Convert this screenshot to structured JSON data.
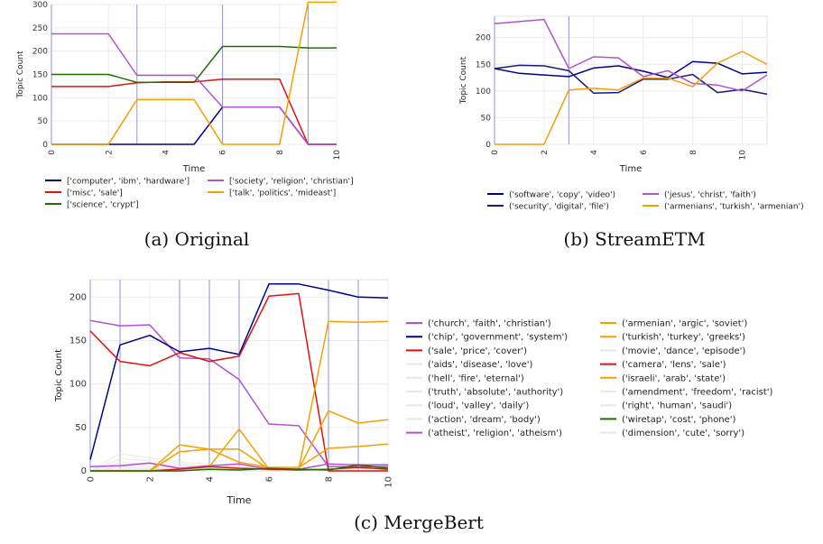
{
  "chart_data": [
    {
      "type": "line",
      "ylabel": "Topic Count",
      "xlabel": "Time",
      "caption": "(a) Original",
      "xlim": [
        0,
        10
      ],
      "ylim": [
        0,
        300
      ],
      "xticks": [
        0,
        2,
        4,
        6,
        8,
        10
      ],
      "yticks": [
        0,
        50,
        100,
        150,
        200,
        250,
        300
      ],
      "vlines": [
        0,
        3,
        6,
        9
      ],
      "grid": true,
      "legend_position": "bottom",
      "x": [
        0,
        1,
        2,
        3,
        4,
        5,
        6,
        7,
        8,
        9,
        10
      ],
      "series": [
        {
          "name": "['computer', 'ibm', 'hardware']",
          "color": "#00008b",
          "values": [
            0,
            0,
            0,
            0,
            0,
            0,
            80,
            80,
            80,
            0,
            0
          ]
        },
        {
          "name": "['misc', 'sale']",
          "color": "#e3120b",
          "values": [
            124,
            124,
            124,
            132,
            134,
            134,
            140,
            140,
            140,
            0,
            0
          ]
        },
        {
          "name": "['science', 'crypt']",
          "color": "#1f6f00",
          "values": [
            150,
            150,
            150,
            133,
            133,
            133,
            210,
            210,
            210,
            207,
            207
          ]
        },
        {
          "name": "['society', 'religion', 'christian']",
          "color": "#b452cd",
          "values": [
            237,
            237,
            237,
            148,
            148,
            148,
            80,
            80,
            80,
            0,
            0
          ]
        },
        {
          "name": "['talk', 'politics', 'mideast']",
          "color": "#f5a000",
          "values": [
            0,
            0,
            0,
            96,
            96,
            96,
            0,
            0,
            0,
            305,
            305
          ]
        }
      ]
    },
    {
      "type": "line",
      "ylabel": "Topic Count",
      "xlabel": "Time",
      "caption": "(b) StreamETM",
      "xlim": [
        0,
        11
      ],
      "ylim": [
        0,
        240
      ],
      "xticks": [
        0,
        2,
        4,
        6,
        8,
        10
      ],
      "yticks": [
        0,
        50,
        100,
        150,
        200
      ],
      "vlines": [
        0,
        3
      ],
      "grid": true,
      "legend_position": "bottom",
      "x": [
        0,
        1,
        2,
        3,
        4,
        5,
        6,
        7,
        8,
        9,
        10,
        11
      ],
      "series": [
        {
          "name": "('software', 'copy', 'video')",
          "color": "#00008b",
          "values": [
            142,
            133,
            130,
            127,
            143,
            147,
            137,
            125,
            155,
            152,
            132,
            135
          ]
        },
        {
          "name": "('security', 'digital', 'file')",
          "color": "#1a1a7a",
          "values": [
            142,
            148,
            147,
            138,
            96,
            97,
            122,
            122,
            131,
            97,
            103,
            94
          ]
        },
        {
          "name": "('jesus', 'christ', 'faith')",
          "color": "#b452cd",
          "values": [
            226,
            230,
            234,
            142,
            164,
            162,
            127,
            138,
            114,
            111,
            100,
            130
          ]
        },
        {
          "name": "('armenians', 'turkish', 'armenian')",
          "color": "#f5a000",
          "values": [
            0,
            0,
            0,
            102,
            105,
            102,
            124,
            124,
            108,
            152,
            174,
            150
          ]
        }
      ]
    },
    {
      "type": "line",
      "ylabel": "Topic Count",
      "xlabel": "Time",
      "caption": "(c) MergeBert",
      "xlim": [
        0,
        10
      ],
      "ylim": [
        0,
        220
      ],
      "xticks": [
        0,
        2,
        4,
        6,
        8,
        10
      ],
      "yticks": [
        0,
        50,
        100,
        150,
        200
      ],
      "vlines": [
        0,
        1,
        3,
        4,
        5,
        8,
        9
      ],
      "grid": true,
      "legend_position": "right",
      "x": [
        0,
        1,
        2,
        3,
        4,
        5,
        6,
        7,
        8,
        9,
        10
      ],
      "series": [
        {
          "name": "('church', 'faith', 'christian')",
          "color": "#b452cd",
          "values": [
            173,
            167,
            168,
            130,
            129,
            105,
            54,
            52,
            5,
            5,
            5
          ]
        },
        {
          "name": "('chip', 'government', 'system')",
          "color": "#00008b",
          "values": [
            13,
            145,
            156,
            137,
            141,
            134,
            215,
            215,
            208,
            200,
            199
          ]
        },
        {
          "name": "('sale', 'price', 'cover')",
          "color": "#e3120b",
          "values": [
            161,
            126,
            121,
            136,
            126,
            132,
            201,
            204,
            0,
            0,
            0
          ]
        },
        {
          "name": "('aids', 'disease', 'love')",
          "color": "#e8e8e8",
          "values": [
            0,
            20,
            15,
            10,
            8,
            5,
            3,
            2,
            2,
            1,
            1
          ]
        },
        {
          "name": "('hell', 'fire', 'eternal')",
          "color": "#e8e8e8",
          "values": [
            0,
            14,
            12,
            8,
            6,
            4,
            3,
            2,
            2,
            1,
            1
          ]
        },
        {
          "name": "('truth', 'absolute', 'authority')",
          "color": "#e8e8e8",
          "values": [
            0,
            10,
            8,
            6,
            5,
            4,
            3,
            2,
            1,
            1,
            1
          ]
        },
        {
          "name": "('loud', 'valley', 'daily')",
          "color": "#e8e8e8",
          "values": [
            0,
            6,
            5,
            4,
            3,
            2,
            2,
            1,
            1,
            1,
            1
          ]
        },
        {
          "name": "('action', 'dream', 'body')",
          "color": "#e8e8e8",
          "values": [
            0,
            4,
            3,
            3,
            2,
            2,
            1,
            1,
            1,
            1,
            1
          ]
        },
        {
          "name": "('atheist', 'religion', 'atheism')",
          "color": "#b452cd",
          "values": [
            5,
            6,
            9,
            3,
            6,
            8,
            2,
            2,
            8,
            7,
            7
          ]
        },
        {
          "name": "('armenian', 'argic', 'soviet')",
          "color": "#f5a000",
          "values": [
            0,
            0,
            0,
            30,
            25,
            25,
            2,
            2,
            172,
            171,
            172
          ]
        },
        {
          "name": "('turkish', 'turkey', 'greeks')",
          "color": "#f5a000",
          "values": [
            0,
            0,
            0,
            2,
            5,
            48,
            2,
            2,
            69,
            55,
            59
          ]
        },
        {
          "name": "('movie', 'dance', 'episode')",
          "color": "#e8e8e8",
          "values": [
            0,
            2,
            2,
            2,
            2,
            1,
            1,
            1,
            1,
            1,
            1
          ]
        },
        {
          "name": "('camera', 'lens', 'sale')",
          "color": "#e3120b",
          "values": [
            0,
            0,
            0,
            2,
            5,
            3,
            2,
            1,
            2,
            4,
            2
          ]
        },
        {
          "name": "('israeli', 'arab', 'state')",
          "color": "#f5a000",
          "values": [
            0,
            0,
            0,
            22,
            25,
            10,
            4,
            4,
            26,
            28,
            31
          ]
        },
        {
          "name": "('amendment', 'freedom', 'racist')",
          "color": "#e8e8e8",
          "values": [
            0,
            2,
            2,
            1,
            1,
            1,
            1,
            1,
            1,
            1,
            1
          ]
        },
        {
          "name": "('right', 'human', 'saudi')",
          "color": "#e8e8e8",
          "values": [
            0,
            1,
            1,
            1,
            1,
            1,
            1,
            1,
            1,
            1,
            1
          ]
        },
        {
          "name": "('wiretap', 'cost', 'phone')",
          "color": "#1f6f00",
          "values": [
            0,
            0,
            0,
            0,
            2,
            1,
            3,
            2,
            1,
            7,
            3
          ]
        },
        {
          "name": "('dimension', 'cute', 'sorry')",
          "color": "#e8e8e8",
          "values": [
            0,
            1,
            1,
            1,
            1,
            1,
            1,
            1,
            1,
            1,
            1
          ]
        }
      ]
    }
  ]
}
